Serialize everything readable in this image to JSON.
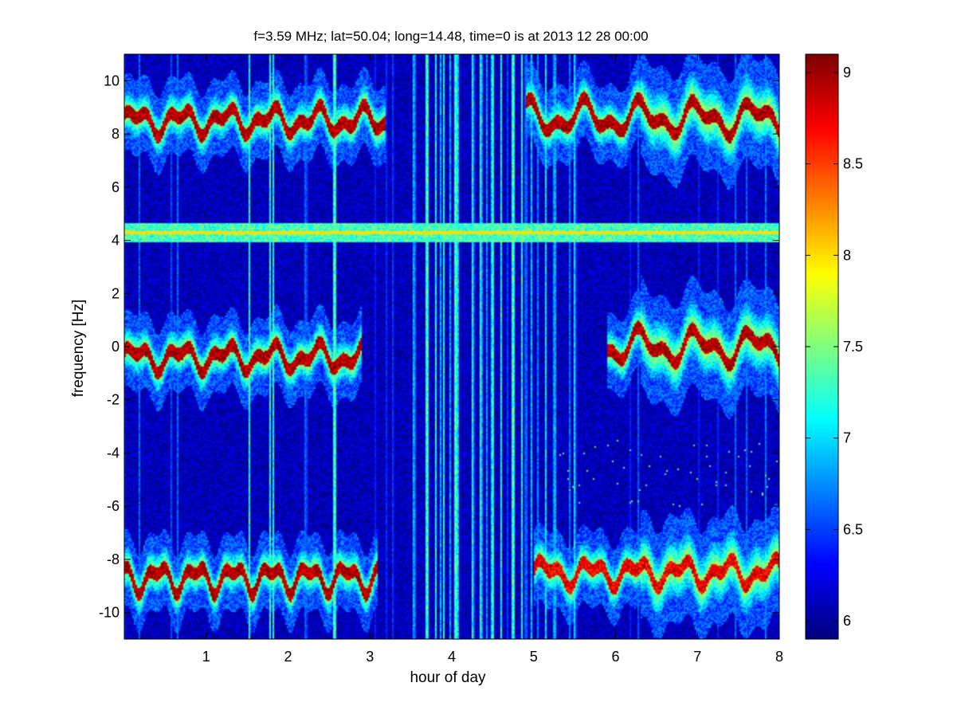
{
  "chart_data": {
    "type": "heatmap",
    "title": "f=3.59 MHz;  lat=50.04; long=14.48, time=0 is at 2013 12 28 00:00",
    "xlabel": "hour of day",
    "ylabel": "frequency [Hz]",
    "xlim": [
      0,
      8
    ],
    "ylim": [
      -11,
      11
    ],
    "xticks": [
      1,
      2,
      3,
      4,
      5,
      6,
      7,
      8
    ],
    "yticks": [
      -10,
      -8,
      -6,
      -4,
      -2,
      0,
      2,
      4,
      6,
      8,
      10
    ],
    "colorbar": {
      "clim": [
        5.9,
        9.1
      ],
      "ticks": [
        6,
        6.5,
        7,
        7.5,
        8,
        8.5,
        9
      ],
      "colormap": "jet"
    },
    "background_level": 6.0,
    "features": [
      {
        "name": "Doppler trace near +8.5 Hz",
        "hours": [
          0,
          3.2
        ],
        "freq_hz": 8.5,
        "peak_level": 9.0
      },
      {
        "name": "Doppler trace near +8.5 Hz",
        "hours": [
          4.9,
          8
        ],
        "freq_hz": 8.6,
        "peak_level": 9.0
      },
      {
        "name": "Carrier line at 4.3 Hz",
        "hours": [
          0,
          8
        ],
        "freq_hz": 4.3,
        "peak_level": 8.0
      },
      {
        "name": "Doppler trace near 0 Hz",
        "hours": [
          0,
          2.9
        ],
        "freq_hz": -0.4,
        "peak_level": 9.0
      },
      {
        "name": "Doppler trace near 0 Hz",
        "hours": [
          5.9,
          8
        ],
        "freq_hz": 0.0,
        "peak_level": 9.0
      },
      {
        "name": "Doppler trace near -8.7 Hz",
        "hours": [
          0,
          3.1
        ],
        "freq_hz": -8.7,
        "peak_level": 9.0
      },
      {
        "name": "Doppler trace near -8.6 Hz",
        "hours": [
          5.0,
          8
        ],
        "freq_hz": -8.5,
        "peak_level": 8.8
      }
    ],
    "vertical_interference_hours": [
      1.53,
      1.78,
      1.82,
      2.57,
      3.7,
      3.8,
      3.9,
      4.05,
      4.25,
      4.35,
      4.5,
      4.6,
      4.75,
      4.85
    ]
  }
}
